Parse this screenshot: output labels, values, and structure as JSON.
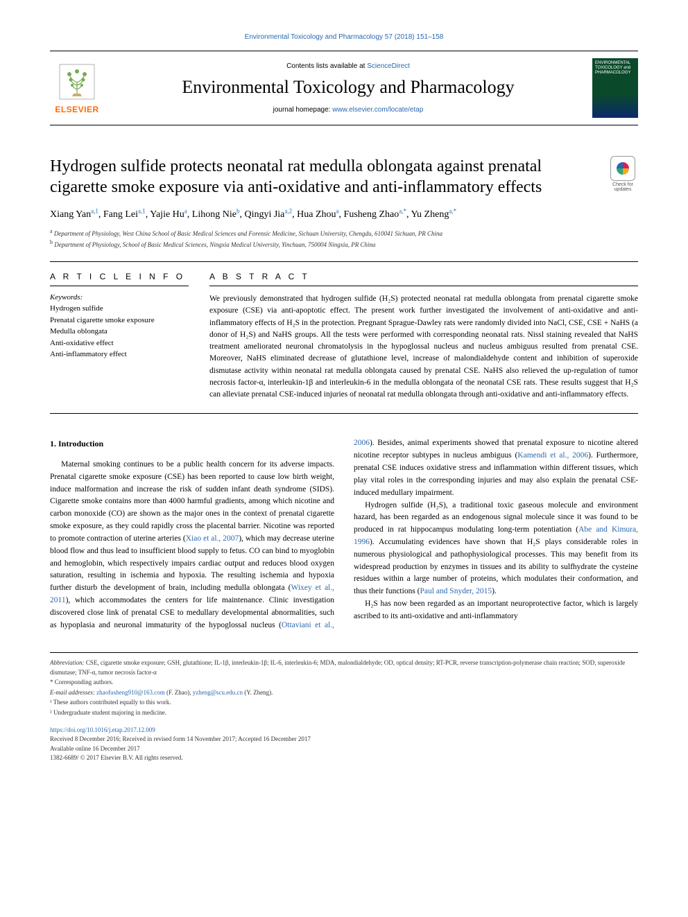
{
  "citation": "Environmental Toxicology and Pharmacology 57 (2018) 151–158",
  "header": {
    "contents_prefix": "Contents lists available at ",
    "contents_link": "ScienceDirect",
    "journal": "Environmental Toxicology and Pharmacology",
    "homepage_prefix": "journal homepage: ",
    "homepage_link": "www.elsevier.com/locate/etap",
    "publisher": "ELSEVIER",
    "cover_text": "ENVIRONMENTAL TOXICOLOGY and PHARMACOLOGY"
  },
  "article": {
    "title": "Hydrogen sulfide protects neonatal rat medulla oblongata against prenatal cigarette smoke exposure via anti-oxidative and anti-inflammatory effects",
    "check_updates": "Check for updates",
    "authors_html": "Xiang Yan<sup class='aff-link'>a,1</sup>, Fang Lei<sup class='aff-link'>a,1</sup>, Yajie Hu<sup class='aff-link'>a</sup>, Lihong Nie<sup class='aff-link'>b</sup>, Qingyi Jia<sup class='aff-link'>a,2</sup>, Hua Zhou<sup class='aff-link'>a</sup>, Fusheng Zhao<sup class='aff-link'>a,*</sup>, Yu Zheng<sup class='aff-link'>a,*</sup>",
    "affiliations": {
      "a": "Department of Physiology, West China School of Basic Medical Sciences and Forensic Medicine, Sichuan University, Chengdu, 610041 Sichuan, PR China",
      "b": "Department of Physiology, School of Basic Medical Sciences, Ningxia Medical University, Yinchuan, 750004 Ningxia, PR China"
    }
  },
  "info": {
    "head": "A R T I C L E  I N F O",
    "kw_label": "Keywords:",
    "keywords": [
      "Hydrogen sulfide",
      "Prenatal cigarette smoke exposure",
      "Medulla oblongata",
      "Anti-oxidative effect",
      "Anti-inflammatory effect"
    ]
  },
  "abstract": {
    "head": "A B S T R A C T",
    "text": "We previously demonstrated that hydrogen sulfide (H₂S) protected neonatal rat medulla oblongata from prenatal cigarette smoke exposure (CSE) via anti-apoptotic effect. The present work further investigated the involvement of anti-oxidative and anti-inflammatory effects of H₂S in the protection. Pregnant Sprague-Dawley rats were randomly divided into NaCl, CSE, CSE + NaHS (a donor of H₂S) and NaHS groups. All the tests were performed with corresponding neonatal rats. Nissl staining revealed that NaHS treatment ameliorated neuronal chromatolysis in the hypoglossal nucleus and nucleus ambiguus resulted from prenatal CSE. Moreover, NaHS eliminated decrease of glutathione level, increase of malondialdehyde content and inhibition of superoxide dismutase activity within neonatal rat medulla oblongata caused by prenatal CSE. NaHS also relieved the up-regulation of tumor necrosis factor-α, interleukin-1β and interleukin-6 in the medulla oblongata of the neonatal CSE rats. These results suggest that H₂S can alleviate prenatal CSE-induced injuries of neonatal rat medulla oblongata through anti-oxidative and anti-inflammatory effects."
  },
  "body": {
    "sec1_title": "1. Introduction",
    "p1": "Maternal smoking continues to be a public health concern for its adverse impacts. Prenatal cigarette smoke exposure (CSE) has been reported to cause low birth weight, induce malformation and increase the risk of sudden infant death syndrome (SIDS). Cigarette smoke contains more than 4000 harmful gradients, among which nicotine and carbon monoxide (CO) are shown as the major ones in the context of prenatal cigarette smoke exposure, as they could rapidly cross the placental barrier. Nicotine was reported to promote contraction of uterine arteries (",
    "r1": "Xiao et al., 2007",
    "p1b": "), which may decrease uterine blood flow and thus lead to insufficient blood supply to fetus. CO can bind to myoglobin and hemoglobin, which respectively impairs cardiac output and reduces blood oxygen saturation, resulting in ischemia and hypoxia. The resulting ischemia and hypoxia further disturb the development of brain, including medulla oblongata (",
    "r2": "Wixey et al., 2011",
    "p1c": "), which accommodates the centers for life maintenance. Clinic investigation discovered close link of prenatal CSE to medullary developmental abnormalities, such as hypoplasia and neuronal immaturity of the hypoglossal nucleus (",
    "r3": "Ottaviani et al., 2006",
    "p1d": "). Besides, animal experiments showed that prenatal exposure to nicotine altered nicotine receptor subtypes in nucleus ambiguus (",
    "r4": "Kamendi et al., 2006",
    "p1e": "). Furthermore, prenatal CSE induces oxidative stress and inflammation within different tissues, which play vital roles in the corresponding injuries and may also explain the prenatal CSE-induced medullary impairment.",
    "p2a": "Hydrogen sulfide (H₂S), a traditional toxic gaseous molecule and environment hazard, has been regarded as an endogenous signal molecule since it was found to be produced in rat hippocampus modulating long-term potentiation (",
    "r5": "Abe and Kimura, 1996",
    "p2b": "). Accumulating evidences have shown that H₂S plays considerable roles in numerous physiological and pathophysiological processes. This may benefit from its widespread production by enzymes in tissues and its ability to sulfhydrate the cysteine residues within a large number of proteins, which modulates their conformation, and thus their functions (",
    "r6": "Paul and Snyder, 2015",
    "p2c": ").",
    "p3": "H₂S has now been regarded as an important neuroprotective factor, which is largely ascribed to its anti-oxidative and anti-inflammatory"
  },
  "footnotes": {
    "abbrev_label": "Abbreviation:",
    "abbrev": " CSE, cigarette smoke exposure; GSH, glutathione; IL-1β, interleukin-1β; IL-6, interleukin-6; MDA, malondialdehyde; OD, optical density; RT-PCR, reverse transcription-polymerase chain reaction; SOD, superoxide dismutase; TNF-α, tumor necrosis factor-α",
    "corr": "* Corresponding authors.",
    "email_label": "E-mail addresses: ",
    "email1": "zhaofusheng910@163.com",
    "email1_who": " (F. Zhao), ",
    "email2": "yzheng@scu.edu.cn",
    "email2_who": " (Y. Zheng).",
    "fn1": "¹ These authors contributed equally to this work.",
    "fn2": "² Undergraduate student majoring in medicine."
  },
  "footer": {
    "doi": "https://doi.org/10.1016/j.etap.2017.12.009",
    "received": "Received 8 December 2016; Received in revised form 14 November 2017; Accepted 16 December 2017",
    "available": "Available online 16 December 2017",
    "issn": "1382-6689/ © 2017 Elsevier B.V. All rights reserved."
  },
  "colors": {
    "link": "#2968b0",
    "brand": "#ff6a00",
    "text": "#000000",
    "rule": "#000000"
  }
}
